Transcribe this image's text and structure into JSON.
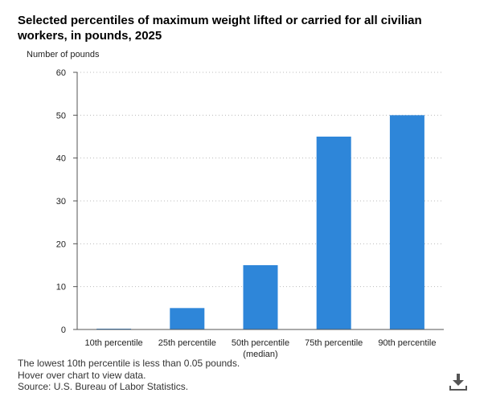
{
  "chart_data": {
    "type": "bar",
    "title": "Selected percentiles of maximum weight lifted or carried for all civilian workers, in pounds, 2025",
    "ylabel": "Number of pounds",
    "xlabel": "",
    "ylim": [
      0,
      60
    ],
    "yticks": [
      0,
      10,
      20,
      30,
      40,
      50,
      60
    ],
    "categories": [
      "10th percentile",
      "25th percentile",
      "50th percentile (median)",
      "75th percentile",
      "90th percentile"
    ],
    "category_lines": [
      [
        "10th percentile"
      ],
      [
        "25th percentile"
      ],
      [
        "50th percentile",
        "(median)"
      ],
      [
        "75th percentile"
      ],
      [
        "90th percentile"
      ]
    ],
    "values": [
      0.05,
      5,
      15,
      45,
      50
    ],
    "bar_color": "#2e86d9",
    "grid": true
  },
  "notes": [
    "The lowest 10th percentile is less than 0.05 pounds.",
    "Hover over chart to view data.",
    "Source: U.S. Bureau of Labor Statistics."
  ],
  "icons": {
    "download": "download-icon"
  }
}
